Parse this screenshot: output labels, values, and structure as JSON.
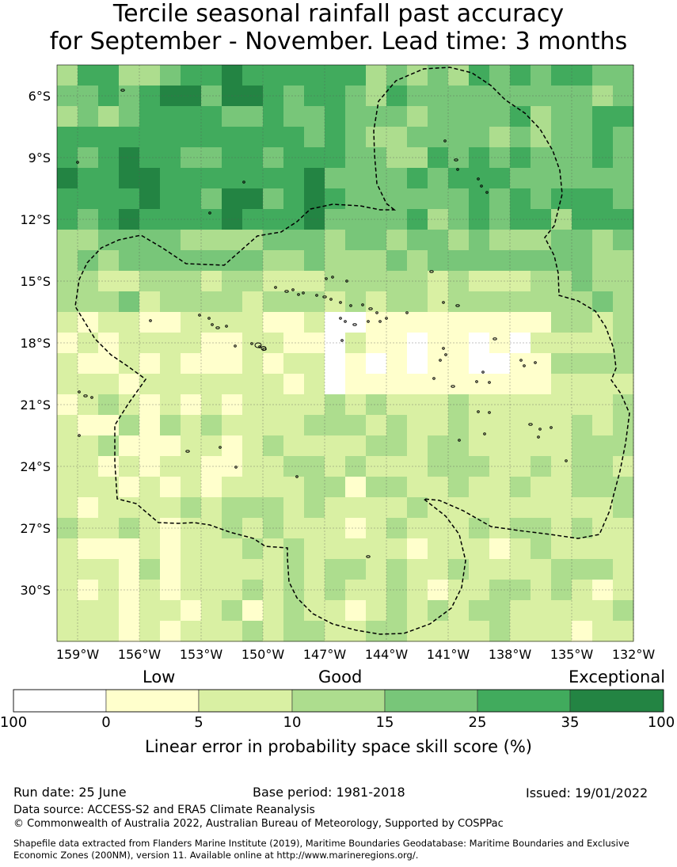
{
  "title": {
    "line1": "Tercile seasonal rainfall past accuracy",
    "line2": "for September - November. Lead time: 3 months"
  },
  "map": {
    "lon_labels": [
      "159°W",
      "156°W",
      "153°W",
      "150°W",
      "147°W",
      "144°W",
      "141°W",
      "138°W",
      "135°W",
      "132°W"
    ],
    "lat_labels": [
      "6°S",
      "9°S",
      "12°S",
      "15°S",
      "18°S",
      "21°S",
      "24°S",
      "27°S",
      "30°S"
    ],
    "lon_range": [
      -160,
      -132
    ],
    "lat_range": [
      -32.5,
      -4.5
    ],
    "grid_step_deg": 1,
    "boundary": "French Polynesia Exclusive Economic Zone (dashed outline)"
  },
  "legend": {
    "categories": {
      "low": "Low",
      "good": "Good",
      "exceptional": "Exceptional"
    },
    "ticks": [
      "100",
      "0",
      "5",
      "10",
      "15",
      "25",
      "35",
      "100"
    ],
    "colors": [
      "#ffffff",
      "#ffffcc",
      "#d9f0a3",
      "#addd8e",
      "#78c679",
      "#41ab5d",
      "#238443"
    ],
    "label": "Linear error in probability space skill score (%)"
  },
  "footer": {
    "run_date": "Run date: 25 June",
    "base_period": "Base period: 1981-2018",
    "issued": "Issued: 19/01/2022",
    "data_source": "Data source: ACCESS-S2 and ERA5 Climate Reanalysis",
    "copyright": "© Commonwealth of Australia 2022, Australian Bureau of Meteorology, Supported by COSPPac",
    "shapefile_1": "Shapefile data extracted from Flanders Marine Institute (2019), Maritime Boundaries Geodatabase: Maritime Boundaries and Exclusive",
    "shapefile_2": "Economic Zones (200NM), version 11. Available online at http://www.marineregions.org/."
  }
}
